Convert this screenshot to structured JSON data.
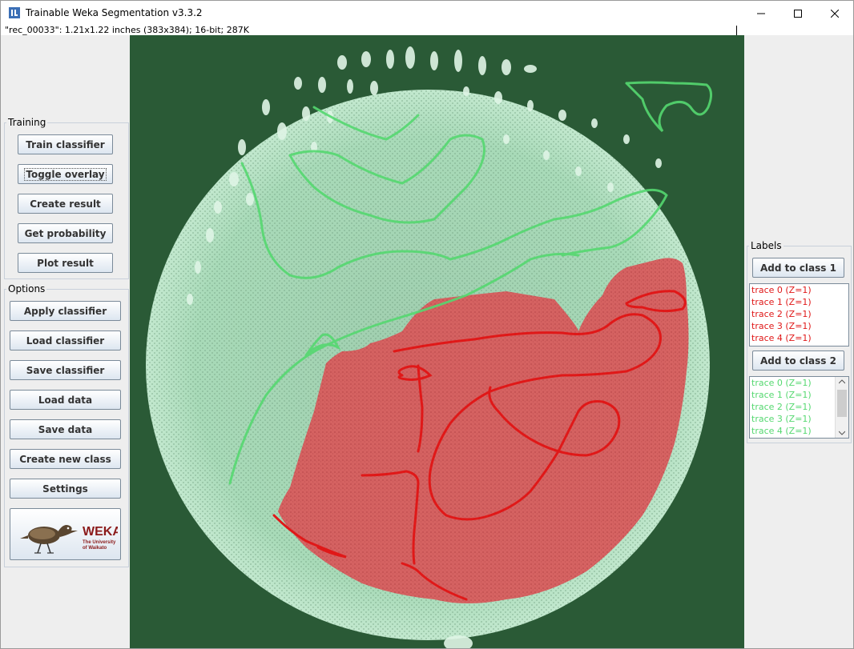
{
  "window": {
    "title": "Trainable Weka Segmentation v3.3.2",
    "image_info": "\"rec_00033\": 1.21x1.22 inches (383x384); 16-bit; 287K",
    "controls": [
      "minimize-icon",
      "maximize-icon",
      "close-icon"
    ]
  },
  "training": {
    "title": "Training",
    "buttons": [
      "Train classifier",
      "Toggle overlay",
      "Create result",
      "Get probability",
      "Plot result"
    ]
  },
  "options": {
    "title": "Options",
    "buttons": [
      "Apply classifier",
      "Load classifier",
      "Save classifier",
      "Load data",
      "Save data",
      "Create new class",
      "Settings"
    ],
    "logo": {
      "text": "WEKA",
      "sub1": "The University",
      "sub2": "of Waikato"
    }
  },
  "labels": {
    "title": "Labels",
    "class1": {
      "button": "Add to class 1",
      "color": "#ff0000",
      "traces": [
        "trace 0 (Z=1)",
        "trace 1 (Z=1)",
        "trace 2 (Z=1)",
        "trace 3 (Z=1)",
        "trace 4 (Z=1)"
      ]
    },
    "class2": {
      "button": "Add to class 2",
      "color": "#33cc33",
      "traces": [
        "trace 0 (Z=1)",
        "trace 1 (Z=1)",
        "trace 2 (Z=1)",
        "trace 3 (Z=1)",
        "trace 4 (Z=1)"
      ]
    }
  },
  "colors": {
    "background": "#2a5a36",
    "overlay_class1": "#d9585a",
    "overlay_class2": "#a8dcb8",
    "trace_class1": "#e01818",
    "trace_class2": "#55d870"
  }
}
